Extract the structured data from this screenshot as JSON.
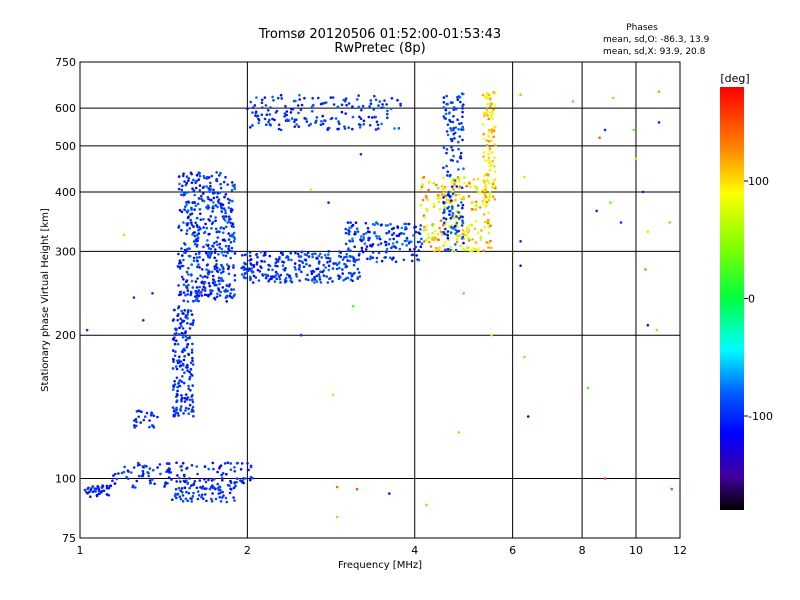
{
  "header": {
    "title": "Tromsø 20120506 01:52:00-01:53:43",
    "subtitle": "RwPretec (8p)"
  },
  "stats": {
    "heading": "Phases",
    "line_o": "mean, sd,O: -86.3, 13.9",
    "line_x": "mean, sd,X:  93.9, 20.8"
  },
  "colorbar": {
    "label": "[deg]",
    "min": -180,
    "max": 180,
    "ticks": [
      100,
      0,
      -100
    ],
    "tick_labels": [
      "100",
      "0",
      "-100"
    ]
  },
  "chart_data": {
    "type": "scatter",
    "title": "Tromsø 20120506 01:52:00-01:53:43",
    "subtitle": "RwPretec (8p)",
    "xlabel": "Frequency [MHz]",
    "ylabel": "Stationary phase Virtual Height [km]",
    "xscale": "log",
    "yscale": "log",
    "xlim": [
      1,
      12
    ],
    "ylim": [
      75,
      750
    ],
    "xticks": [
      1,
      2,
      4,
      6,
      8,
      10,
      12
    ],
    "xtick_labels": [
      "1",
      "2",
      "4",
      "6",
      "8",
      "10",
      "12"
    ],
    "yticks": [
      75,
      100,
      200,
      300,
      400,
      500,
      600,
      750
    ],
    "ytick_labels": [
      "75",
      "100",
      "200",
      "300",
      "400",
      "500",
      "600",
      "750"
    ],
    "grid": true,
    "colorbar_label": "[deg]",
    "color_range": [
      -180,
      180
    ],
    "clusters": [
      {
        "f_min": 1.0,
        "f_max": 1.14,
        "h_min": 91,
        "h_max": 97,
        "phase_min": -115,
        "phase_max": -95,
        "count": 40
      },
      {
        "f_min": 1.14,
        "f_max": 2.05,
        "h_min": 95,
        "h_max": 108,
        "phase_min": -120,
        "phase_max": -80,
        "count": 150
      },
      {
        "f_min": 1.45,
        "f_max": 1.9,
        "h_min": 89,
        "h_max": 96,
        "phase_min": -110,
        "phase_max": -85,
        "count": 60
      },
      {
        "f_min": 1.25,
        "f_max": 1.38,
        "h_min": 128,
        "h_max": 140,
        "phase_min": -110,
        "phase_max": -90,
        "count": 25
      },
      {
        "f_min": 1.47,
        "f_max": 1.6,
        "h_min": 135,
        "h_max": 230,
        "phase_min": -115,
        "phase_max": -80,
        "count": 180
      },
      {
        "f_min": 1.5,
        "f_max": 1.9,
        "h_min": 235,
        "h_max": 440,
        "phase_min": -120,
        "phase_max": -75,
        "count": 480
      },
      {
        "f_min": 1.95,
        "f_max": 3.2,
        "h_min": 258,
        "h_max": 300,
        "phase_min": -115,
        "phase_max": -75,
        "count": 260
      },
      {
        "f_min": 3.0,
        "f_max": 4.15,
        "h_min": 285,
        "h_max": 345,
        "phase_min": -120,
        "phase_max": -70,
        "count": 160
      },
      {
        "f_min": 4.1,
        "f_max": 5.5,
        "h_min": 300,
        "h_max": 430,
        "phase_min": 60,
        "phase_max": 140,
        "count": 230
      },
      {
        "f_min": 4.5,
        "f_max": 4.9,
        "h_min": 300,
        "h_max": 650,
        "phase_min": -115,
        "phase_max": -75,
        "count": 150
      },
      {
        "f_min": 5.3,
        "f_max": 5.6,
        "h_min": 380,
        "h_max": 650,
        "phase_min": 70,
        "phase_max": 130,
        "count": 100
      },
      {
        "f_min": 2.0,
        "f_max": 3.8,
        "h_min": 540,
        "h_max": 640,
        "phase_min": -115,
        "phase_max": -75,
        "count": 170
      }
    ],
    "points": [
      {
        "f": 1.2,
        "h": 325,
        "phase": 105
      },
      {
        "f": 1.25,
        "h": 240,
        "phase": -100
      },
      {
        "f": 1.35,
        "h": 245,
        "phase": -100
      },
      {
        "f": 1.3,
        "h": 215,
        "phase": -100
      },
      {
        "f": 1.03,
        "h": 205,
        "phase": -95
      },
      {
        "f": 2.5,
        "h": 200,
        "phase": -100
      },
      {
        "f": 2.85,
        "h": 150,
        "phase": 100
      },
      {
        "f": 2.9,
        "h": 96,
        "phase": 140
      },
      {
        "f": 2.9,
        "h": 83,
        "phase": 110
      },
      {
        "f": 3.1,
        "h": 230,
        "phase": 20
      },
      {
        "f": 3.15,
        "h": 95,
        "phase": 150
      },
      {
        "f": 3.6,
        "h": 93,
        "phase": -110
      },
      {
        "f": 4.2,
        "h": 88,
        "phase": 40
      },
      {
        "f": 4.8,
        "h": 125,
        "phase": 40
      },
      {
        "f": 4.9,
        "h": 245,
        "phase": 20
      },
      {
        "f": 3.2,
        "h": 480,
        "phase": -100
      },
      {
        "f": 2.8,
        "h": 380,
        "phase": -100
      },
      {
        "f": 2.6,
        "h": 405,
        "phase": 100
      },
      {
        "f": 5.5,
        "h": 200,
        "phase": 100
      },
      {
        "f": 6.2,
        "h": 315,
        "phase": -100
      },
      {
        "f": 6.2,
        "h": 280,
        "phase": -100
      },
      {
        "f": 6.2,
        "h": 640,
        "phase": 30
      },
      {
        "f": 6.3,
        "h": 430,
        "phase": 100
      },
      {
        "f": 6.3,
        "h": 180,
        "phase": 40
      },
      {
        "f": 6.4,
        "h": 135,
        "phase": -120
      },
      {
        "f": 7.7,
        "h": 620,
        "phase": 20
      },
      {
        "f": 8.2,
        "h": 155,
        "phase": 20
      },
      {
        "f": 8.5,
        "h": 365,
        "phase": -100
      },
      {
        "f": 8.6,
        "h": 520,
        "phase": 140
      },
      {
        "f": 8.8,
        "h": 100,
        "phase": 150
      },
      {
        "f": 8.8,
        "h": 540,
        "phase": -100
      },
      {
        "f": 9.0,
        "h": 380,
        "phase": 40
      },
      {
        "f": 9.1,
        "h": 630,
        "phase": 40
      },
      {
        "f": 9.4,
        "h": 345,
        "phase": -100
      },
      {
        "f": 9.9,
        "h": 540,
        "phase": 40
      },
      {
        "f": 10.0,
        "h": 470,
        "phase": 110
      },
      {
        "f": 10.3,
        "h": 400,
        "phase": -110
      },
      {
        "f": 10.5,
        "h": 330,
        "phase": 100
      },
      {
        "f": 10.4,
        "h": 275,
        "phase": 130
      },
      {
        "f": 10.5,
        "h": 210,
        "phase": -110
      },
      {
        "f": 10.9,
        "h": 205,
        "phase": 110
      },
      {
        "f": 11.0,
        "h": 650,
        "phase": 120
      },
      {
        "f": 11.6,
        "h": 95,
        "phase": 150
      },
      {
        "f": 11.5,
        "h": 345,
        "phase": 30
      },
      {
        "f": 11.0,
        "h": 560,
        "phase": -100
      },
      {
        "f": 2.3,
        "h": 540,
        "phase": -100
      }
    ]
  }
}
